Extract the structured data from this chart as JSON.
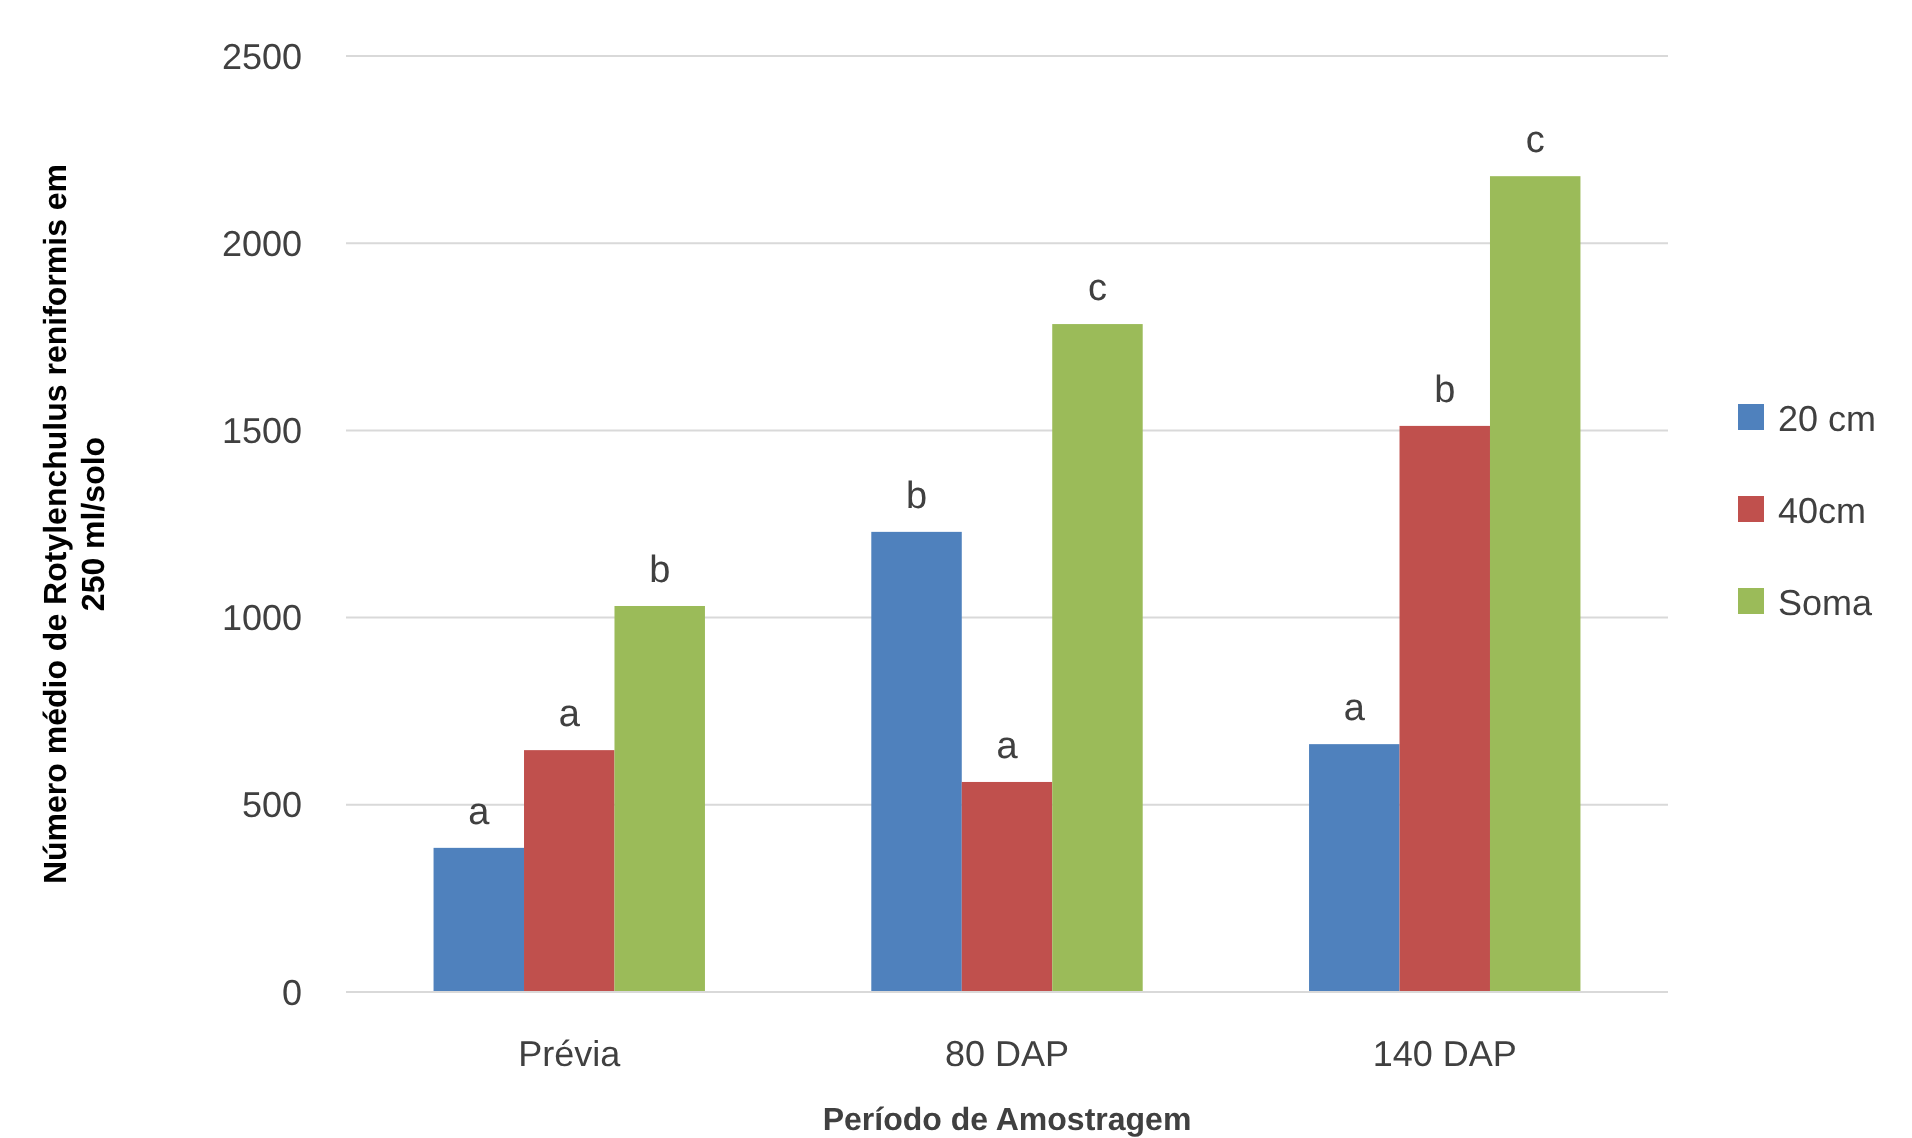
{
  "chart_data": {
    "type": "bar",
    "xlabel": "Período de Amostragem",
    "ylabel": "Número médio de Rotylenchulus reniformis em 250 ml/solo",
    "categories": [
      "Prévia",
      "80 DAP",
      "140 DAP"
    ],
    "series": [
      {
        "name": "20 cm",
        "color": "#4f81bd",
        "values": [
          385,
          1229,
          662
        ],
        "value_labels": [
          "a",
          "b",
          "a"
        ]
      },
      {
        "name": "40cm",
        "color": "#c0504d",
        "values": [
          646,
          561,
          1512
        ],
        "value_labels": [
          "a",
          "a",
          "b"
        ]
      },
      {
        "name": "Soma",
        "color": "#9bbb59",
        "values": [
          1031,
          1784,
          2179
        ],
        "value_labels": [
          "b",
          "c",
          "c"
        ]
      }
    ],
    "ylim": [
      0,
      2500
    ],
    "yticks": [
      0,
      500,
      1000,
      1500,
      2000,
      2500
    ],
    "grid": "y",
    "legend": "right"
  }
}
